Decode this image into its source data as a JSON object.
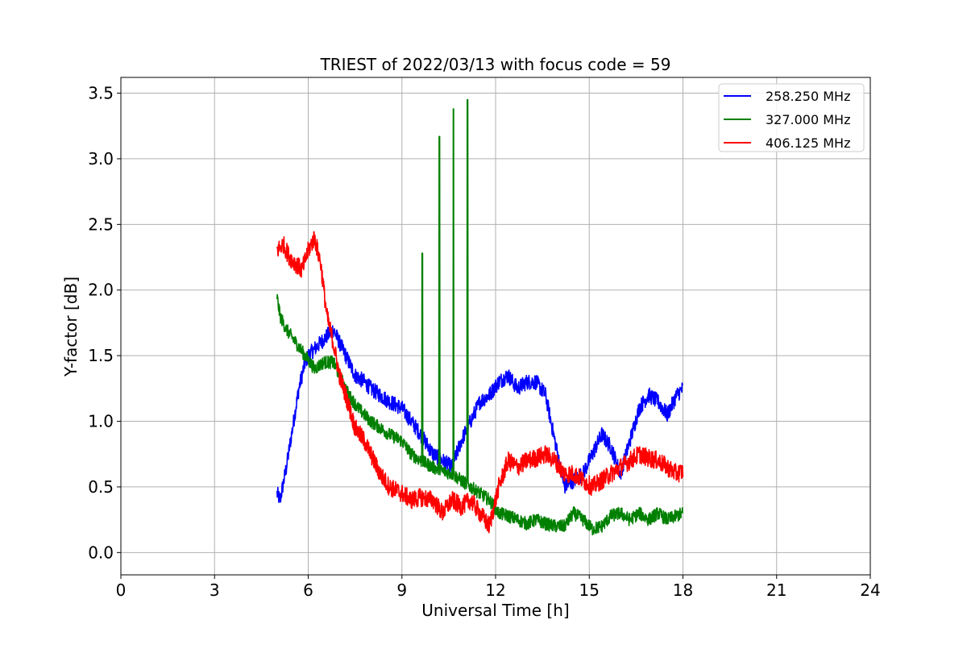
{
  "chart_data": {
    "type": "line",
    "title": "TRIEST of 2022/03/13 with focus code = 59",
    "xlabel": "Universal Time [h]",
    "ylabel": "Y-factor [dB]",
    "xlim": [
      0,
      24
    ],
    "ylim": [
      -0.17,
      3.62
    ],
    "xticks": [
      0,
      3,
      6,
      9,
      12,
      15,
      18,
      21,
      24
    ],
    "yticks": [
      0.0,
      0.5,
      1.0,
      1.5,
      2.0,
      2.5,
      3.0,
      3.5
    ],
    "ytick_labels": [
      "0.0",
      "0.5",
      "1.0",
      "1.5",
      "2.0",
      "2.5",
      "3.0",
      "3.5"
    ],
    "grid": true,
    "legend_position": "top-right",
    "series": [
      {
        "name": "258.250 MHz",
        "color": "#0000ff",
        "noise": 0.06,
        "x": [
          5.0,
          5.1,
          5.3,
          5.5,
          5.7,
          5.9,
          6.0,
          6.2,
          6.4,
          6.6,
          6.8,
          7.0,
          7.2,
          7.5,
          7.8,
          8.0,
          8.3,
          8.6,
          9.0,
          9.3,
          9.6,
          10.0,
          10.3,
          10.6,
          10.9,
          11.2,
          11.5,
          11.8,
          12.1,
          12.4,
          12.7,
          13.0,
          13.3,
          13.6,
          13.9,
          14.2,
          14.5,
          14.8,
          15.1,
          15.4,
          15.7,
          16.0,
          16.3,
          16.6,
          16.9,
          17.2,
          17.5,
          17.8,
          18.0
        ],
        "y": [
          0.45,
          0.4,
          0.65,
          0.95,
          1.25,
          1.45,
          1.5,
          1.55,
          1.6,
          1.65,
          1.7,
          1.6,
          1.5,
          1.35,
          1.3,
          1.25,
          1.2,
          1.15,
          1.1,
          1.0,
          0.9,
          0.75,
          0.7,
          0.65,
          0.85,
          1.0,
          1.15,
          1.2,
          1.3,
          1.35,
          1.25,
          1.3,
          1.3,
          1.2,
          0.85,
          0.5,
          0.55,
          0.6,
          0.75,
          0.9,
          0.8,
          0.6,
          0.85,
          1.1,
          1.2,
          1.15,
          1.05,
          1.2,
          1.25
        ]
      },
      {
        "name": "327.000 MHz",
        "color": "#008000",
        "noise": 0.05,
        "x": [
          5.0,
          5.1,
          5.3,
          5.6,
          5.9,
          6.2,
          6.5,
          6.8,
          7.0,
          7.3,
          7.6,
          8.0,
          8.3,
          8.6,
          9.0,
          9.3,
          9.6,
          10.0,
          10.3,
          10.6,
          10.9,
          11.2,
          11.5,
          11.8,
          12.1,
          12.4,
          12.7,
          13.0,
          13.3,
          13.6,
          13.9,
          14.2,
          14.5,
          14.8,
          15.1,
          15.4,
          15.7,
          16.0,
          16.3,
          16.6,
          16.9,
          17.2,
          17.5,
          17.8,
          18.0
        ],
        "y": [
          1.95,
          1.8,
          1.7,
          1.6,
          1.5,
          1.4,
          1.45,
          1.45,
          1.35,
          1.2,
          1.1,
          1.0,
          0.95,
          0.9,
          0.85,
          0.75,
          0.7,
          0.65,
          0.62,
          0.6,
          0.55,
          0.5,
          0.45,
          0.4,
          0.3,
          0.28,
          0.25,
          0.22,
          0.25,
          0.22,
          0.2,
          0.2,
          0.3,
          0.25,
          0.18,
          0.2,
          0.28,
          0.3,
          0.25,
          0.3,
          0.25,
          0.3,
          0.25,
          0.28,
          0.3
        ],
        "spikes": [
          {
            "x": 9.65,
            "y": 2.28
          },
          {
            "x": 10.2,
            "y": 3.17
          },
          {
            "x": 10.65,
            "y": 3.38
          },
          {
            "x": 11.1,
            "y": 3.45
          }
        ]
      },
      {
        "name": "406.125 MHz",
        "color": "#ff0000",
        "noise": 0.07,
        "x": [
          5.0,
          5.2,
          5.4,
          5.6,
          5.8,
          6.0,
          6.2,
          6.4,
          6.6,
          6.8,
          7.0,
          7.2,
          7.5,
          7.8,
          8.0,
          8.3,
          8.6,
          9.0,
          9.3,
          9.6,
          10.0,
          10.3,
          10.6,
          10.9,
          11.2,
          11.5,
          11.8,
          12.1,
          12.4,
          12.7,
          13.0,
          13.3,
          13.6,
          13.9,
          14.2,
          14.5,
          14.8,
          15.1,
          15.4,
          15.7,
          16.0,
          16.3,
          16.6,
          16.9,
          17.2,
          17.5,
          17.8,
          18.0
        ],
        "y": [
          2.3,
          2.35,
          2.25,
          2.2,
          2.15,
          2.3,
          2.4,
          2.2,
          1.8,
          1.6,
          1.35,
          1.2,
          0.95,
          0.85,
          0.75,
          0.6,
          0.5,
          0.45,
          0.4,
          0.42,
          0.4,
          0.3,
          0.4,
          0.35,
          0.4,
          0.3,
          0.2,
          0.5,
          0.7,
          0.65,
          0.7,
          0.72,
          0.75,
          0.7,
          0.6,
          0.6,
          0.55,
          0.5,
          0.55,
          0.6,
          0.65,
          0.7,
          0.75,
          0.72,
          0.7,
          0.65,
          0.6,
          0.62
        ]
      }
    ]
  }
}
